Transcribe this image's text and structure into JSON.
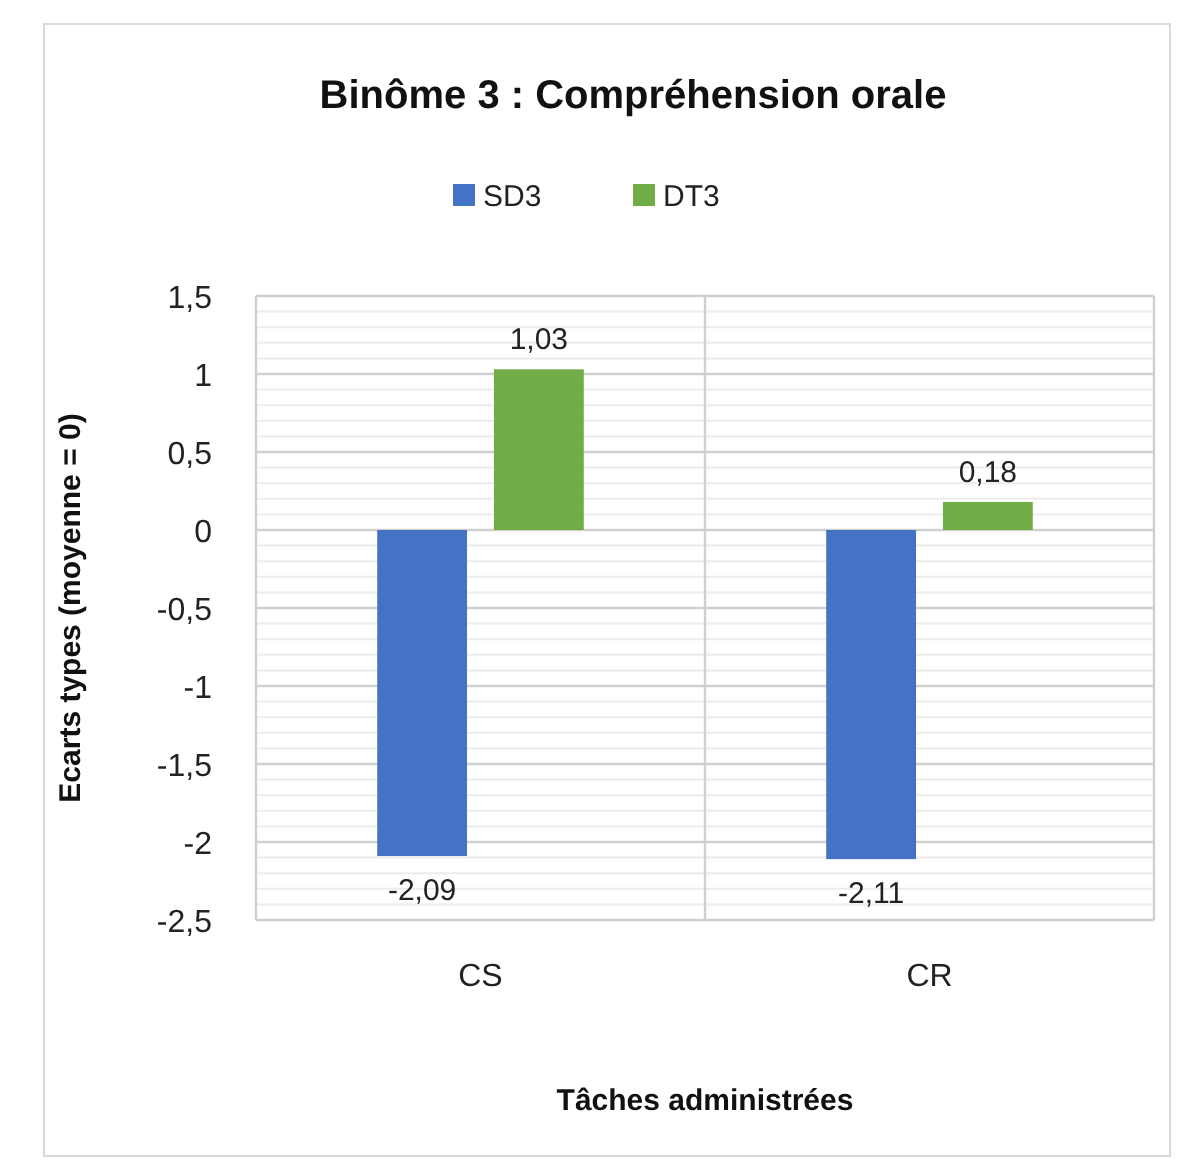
{
  "chart_data": {
    "type": "bar",
    "title": "Binôme 3 : Compréhension orale",
    "xlabel": "Tâches administrées",
    "ylabel": "Ecarts types (moyenne = 0)",
    "categories": [
      "CS",
      "CR"
    ],
    "series": [
      {
        "name": "SD3",
        "color": "#4472c4",
        "values": [
          -2.09,
          -2.11
        ],
        "value_labels": [
          "-2,09",
          "-2,11"
        ]
      },
      {
        "name": "DT3",
        "color": "#70ad47",
        "values": [
          1.03,
          0.18
        ],
        "value_labels": [
          "1,03",
          "0,18"
        ]
      }
    ],
    "ylim": [
      -2.5,
      1.5
    ],
    "yticks": [
      {
        "value": -2.5,
        "label": "-2,5"
      },
      -2,
      {
        "value": -1.5,
        "label": "-1,5"
      },
      -1,
      {
        "value": -0.5,
        "label": "-0,5"
      },
      0,
      {
        "value": 0.5,
        "label": "0,5"
      },
      1,
      {
        "value": 1.5,
        "label": "1,5"
      }
    ],
    "grid": true,
    "legend": "top"
  }
}
